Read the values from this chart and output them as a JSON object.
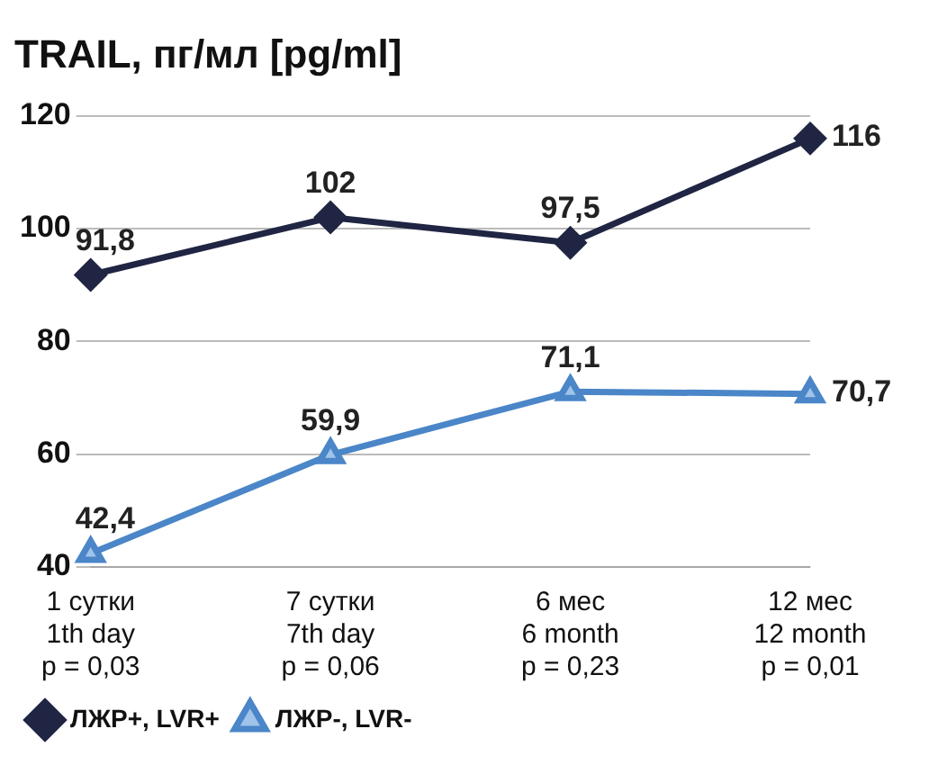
{
  "chart_data": {
    "type": "line",
    "title": "TRAIL, пг/мл [pg/ml]",
    "categories": [
      "1 сутки\n1th day\np = 0,03",
      "7 сутки\n7th day\np = 0,06",
      "6 мес\n6 month\np = 0,23",
      "12 мес\n12 month\np = 0,01"
    ],
    "series": [
      {
        "name": "ЛЖР+, LVR+",
        "color": "#1f2542",
        "marker": "diamond",
        "values": [
          91.8,
          102,
          97.5,
          116
        ],
        "value_labels": [
          "91,8",
          "102",
          "97,5",
          "116"
        ]
      },
      {
        "name": "ЛЖР-, LVR-",
        "color": "#4a86c8",
        "marker": "triangle",
        "values": [
          42.4,
          59.9,
          71.1,
          70.7
        ],
        "value_labels": [
          "42,4",
          "59,9",
          "71,1",
          "70,7"
        ]
      }
    ],
    "ylim": [
      40,
      120
    ],
    "yticks": [
      40,
      60,
      80,
      100,
      120
    ],
    "grid": "y",
    "legend": "bottom",
    "line_style": "solid"
  }
}
